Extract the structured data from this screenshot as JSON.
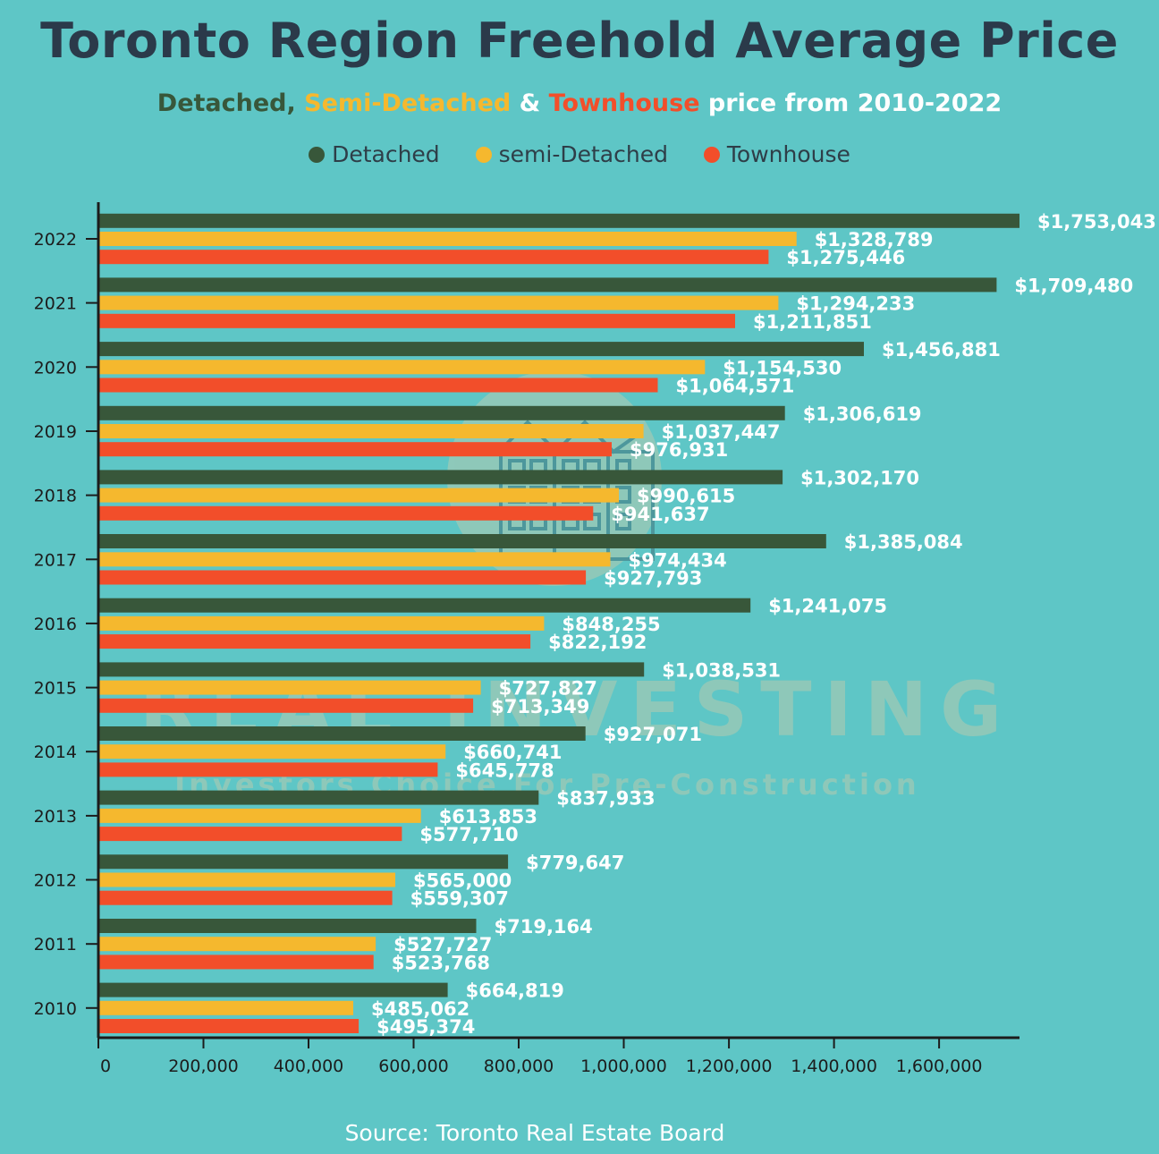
{
  "title": "Toronto Region Freehold Average Price",
  "subtitle": {
    "part1": "Detached,",
    "part2": "Semi-Detached",
    "part3": " & ",
    "part4": "Townhouse",
    "part5": " price from 2010-2022"
  },
  "watermark": {
    "brand": "REAL INVESTING",
    "tagline": "Investors Choice For Pre-Construction",
    "logo_icon": "buildings-icon"
  },
  "source": "Source: Toronto Real Estate Board",
  "colors": {
    "background": "#5ec6c6",
    "title": "#2b3a4a",
    "detached": "#38573a",
    "semi_detached": "#f5b82e",
    "townhouse": "#f24e2a",
    "value_label": "#ffffff"
  },
  "chart_data": {
    "type": "bar",
    "orientation": "horizontal",
    "categories": [
      "2022",
      "2021",
      "2020",
      "2019",
      "2018",
      "2017",
      "2016",
      "2015",
      "2014",
      "2013",
      "2012",
      "2011",
      "2010"
    ],
    "series": [
      {
        "name": "Detached",
        "color": "#38573a",
        "values": [
          1753043,
          1709480,
          1456881,
          1306619,
          1302170,
          1385084,
          1241075,
          1038531,
          927071,
          837933,
          779647,
          719164,
          664819
        ],
        "labels": [
          "$1,753,043",
          "$1,709,480",
          "$1,456,881",
          "$1,306,619",
          "$1,302,170",
          "$1,385,084",
          "$1,241,075",
          "$1,038,531",
          "$927,071",
          "$837,933",
          "$779,647",
          "$719,164",
          "$664,819"
        ]
      },
      {
        "name": "semi-Detached",
        "color": "#f5b82e",
        "values": [
          1328789,
          1294233,
          1154530,
          1037447,
          990615,
          974434,
          848255,
          727827,
          660741,
          613853,
          565000,
          527727,
          485062
        ],
        "labels": [
          "$1,328,789",
          "$1,294,233",
          "$1,154,530",
          "$1,037,447",
          "$990,615",
          "$974,434",
          "$848,255",
          "$727,827",
          "$660,741",
          "$613,853",
          "$565,000",
          "$527,727",
          "$485,062"
        ]
      },
      {
        "name": "Townhouse",
        "color": "#f24e2a",
        "values": [
          1275446,
          1211851,
          1064571,
          976931,
          941637,
          927793,
          822192,
          713349,
          645778,
          577710,
          559307,
          523768,
          495374
        ],
        "labels": [
          "$1,275,446",
          "$1,211,851",
          "$1,064,571",
          "$976,931",
          "$941,637",
          "$927,793",
          "$822,192",
          "$713,349",
          "$645,778",
          "$577,710",
          "$559,307",
          "$523,768",
          "$495,374"
        ]
      }
    ],
    "x_ticks": [
      0,
      200000,
      400000,
      600000,
      800000,
      1000000,
      1200000,
      1400000,
      1600000
    ],
    "x_tick_labels": [
      "0",
      "200,000",
      "400,000",
      "600,000",
      "800,000",
      "1,000,000",
      "1,200,000",
      "1,400,000",
      "1,600,000"
    ],
    "xlim": [
      0,
      1753043
    ],
    "grid": false,
    "legend_position": "top-center"
  }
}
